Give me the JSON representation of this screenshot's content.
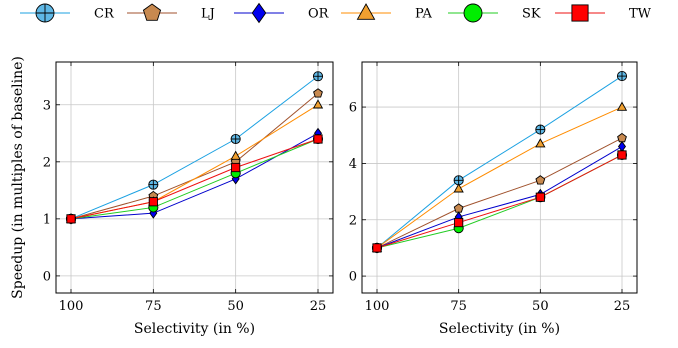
{
  "legend": {
    "placement": "top",
    "items": [
      {
        "name": "CR",
        "color": "#1ba1e2",
        "fill": "#5fb8e6",
        "marker": "circle-cross"
      },
      {
        "name": "LJ",
        "color": "#a0522d",
        "fill": "#c8894f",
        "marker": "pentagon"
      },
      {
        "name": "OR",
        "color": "#0000cc",
        "fill": "#0000ee",
        "marker": "diamond"
      },
      {
        "name": "PA",
        "color": "#ff8c00",
        "fill": "#f0a030",
        "marker": "triangle"
      },
      {
        "name": "SK",
        "color": "#22cc22",
        "fill": "#00ee00",
        "marker": "circle"
      },
      {
        "name": "TW",
        "color": "#ee1111",
        "fill": "#ff0000",
        "marker": "square"
      }
    ]
  },
  "chart_data": [
    {
      "type": "line",
      "categories": [
        "100",
        "75",
        "50",
        "25"
      ],
      "xlabel": "Selectivity (in %)",
      "ylabel": "Speedup (in multiples of baseline)",
      "ylim": [
        -0.3,
        3.75
      ],
      "yticks": [
        0,
        1,
        2,
        3
      ],
      "grid": true,
      "series": [
        {
          "name": "CR",
          "values": [
            1.0,
            1.6,
            2.4,
            3.5
          ]
        },
        {
          "name": "LJ",
          "values": [
            1.0,
            1.4,
            2.0,
            3.2
          ]
        },
        {
          "name": "OR",
          "values": [
            1.0,
            1.1,
            1.7,
            2.5
          ]
        },
        {
          "name": "PA",
          "values": [
            1.0,
            1.3,
            2.1,
            3.0
          ]
        },
        {
          "name": "SK",
          "values": [
            1.0,
            1.2,
            1.8,
            2.4
          ]
        },
        {
          "name": "TW",
          "values": [
            1.0,
            1.3,
            1.9,
            2.4
          ]
        }
      ]
    },
    {
      "type": "line",
      "categories": [
        "100",
        "75",
        "50",
        "25"
      ],
      "xlabel": "Selectivity (in %)",
      "ylabel": "",
      "ylim": [
        -0.6,
        7.6
      ],
      "yticks": [
        0,
        2,
        4,
        6
      ],
      "grid": true,
      "series": [
        {
          "name": "CR",
          "values": [
            1.0,
            3.4,
            5.2,
            7.1
          ]
        },
        {
          "name": "LJ",
          "values": [
            1.0,
            2.4,
            3.4,
            4.9
          ]
        },
        {
          "name": "OR",
          "values": [
            1.0,
            2.1,
            2.9,
            4.6
          ]
        },
        {
          "name": "PA",
          "values": [
            1.0,
            3.1,
            4.7,
            6.0
          ]
        },
        {
          "name": "SK",
          "values": [
            1.0,
            1.7,
            2.8,
            4.3
          ]
        },
        {
          "name": "TW",
          "values": [
            1.0,
            1.9,
            2.8,
            4.3
          ]
        }
      ]
    }
  ]
}
